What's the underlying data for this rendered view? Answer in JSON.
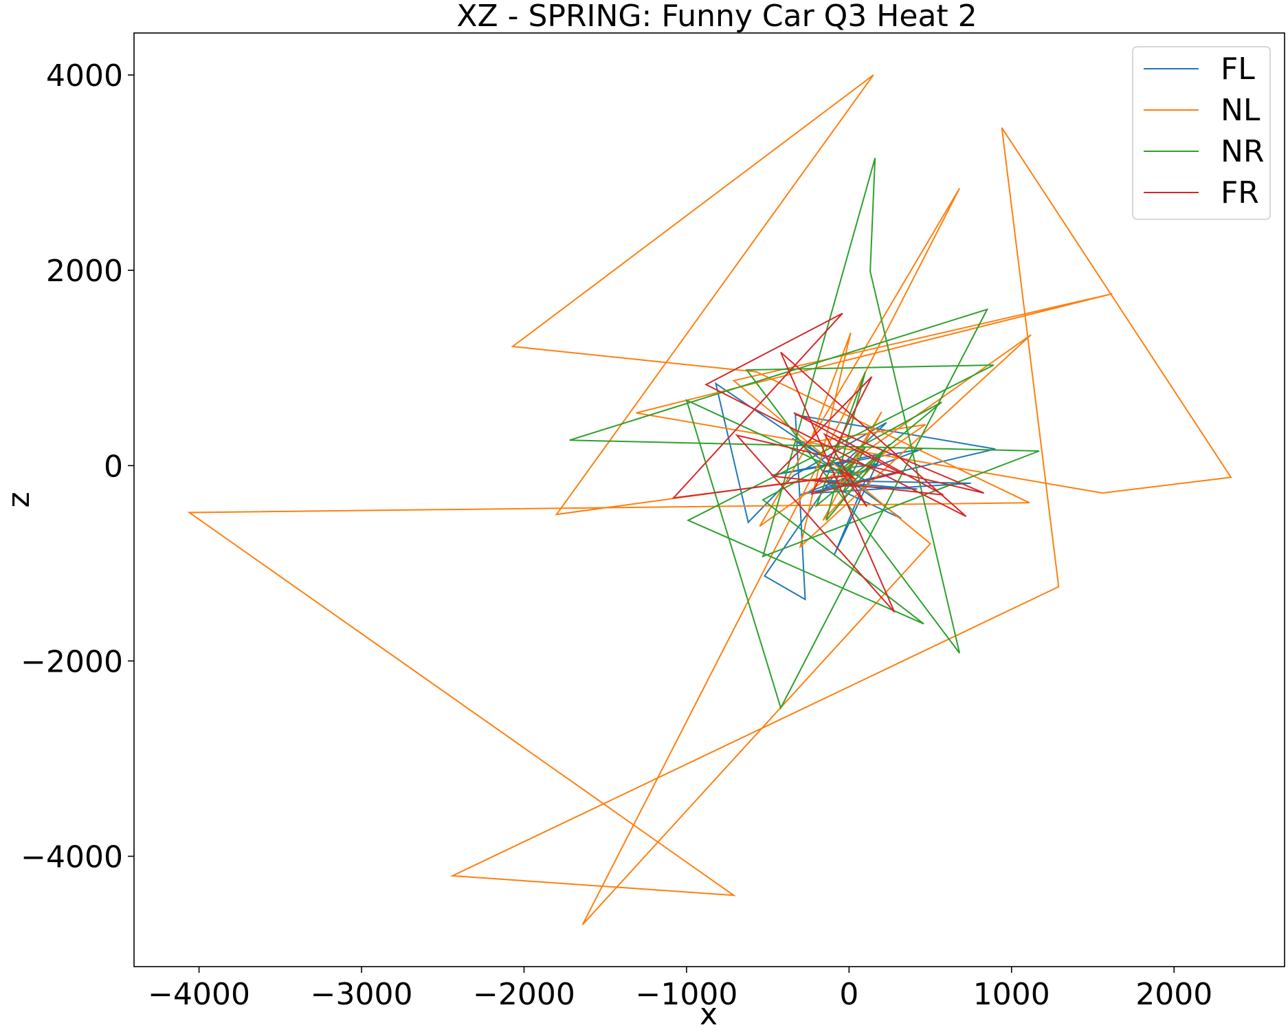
{
  "chart_data": {
    "type": "line",
    "title": "XZ - SPRING: Funny Car Q3 Heat 2",
    "xlabel": "x",
    "ylabel": "z",
    "xlim": [
      -4400,
      2680
    ],
    "ylim": [
      -5130,
      4430
    ],
    "xticks": [
      -4000,
      -3000,
      -2000,
      -1000,
      0,
      1000,
      2000
    ],
    "yticks": [
      -4000,
      -2000,
      0,
      2000,
      4000
    ],
    "xtick_labels": [
      "−4000",
      "−3000",
      "−2000",
      "−1000",
      "0",
      "1000",
      "2000"
    ],
    "ytick_labels": [
      "−4000",
      "−2000",
      "0",
      "2000",
      "4000"
    ],
    "grid": false,
    "legend_position": "top-right",
    "series": [
      {
        "name": "FL",
        "color": "#1f77b4",
        "points": [
          [
            0,
            -80
          ],
          [
            -820,
            840
          ],
          [
            -620,
            -580
          ],
          [
            -340,
            -100
          ],
          [
            230,
            440
          ],
          [
            -60,
            -20
          ],
          [
            -520,
            -1130
          ],
          [
            -270,
            -1370
          ],
          [
            -330,
            520
          ],
          [
            900,
            170
          ],
          [
            -300,
            -300
          ],
          [
            450,
            170
          ],
          [
            -480,
            -100
          ],
          [
            200,
            120
          ],
          [
            -90,
            -910
          ],
          [
            100,
            -150
          ],
          [
            -350,
            280
          ],
          [
            320,
            -540
          ],
          [
            -120,
            -200
          ],
          [
            420,
            -240
          ],
          [
            -230,
            -150
          ],
          [
            750,
            -180
          ],
          [
            -210,
            -280
          ],
          [
            180,
            20
          ],
          [
            -160,
            -60
          ],
          [
            60,
            -90
          ],
          [
            0,
            -40
          ],
          [
            -40,
            -110
          ],
          [
            30,
            -60
          ],
          [
            0,
            -80
          ]
        ]
      },
      {
        "name": "NL",
        "color": "#ff7f0e",
        "points": [
          [
            0,
            -90
          ],
          [
            -1800,
            -500
          ],
          [
            150,
            4000
          ],
          [
            -2070,
            1220
          ],
          [
            -570,
            960
          ],
          [
            1110,
            -380
          ],
          [
            -4060,
            -480
          ],
          [
            -710,
            -4400
          ],
          [
            -2440,
            -4200
          ],
          [
            1290,
            -1240
          ],
          [
            940,
            3460
          ],
          [
            2350,
            -120
          ],
          [
            1560,
            -280
          ],
          [
            -1310,
            540
          ],
          [
            1620,
            1760
          ],
          [
            -710,
            870
          ],
          [
            500,
            -800
          ],
          [
            -1640,
            -4700
          ],
          [
            680,
            2840
          ],
          [
            -550,
            -620
          ],
          [
            1120,
            1340
          ],
          [
            -300,
            -830
          ],
          [
            10,
            1360
          ],
          [
            -240,
            240
          ],
          [
            470,
            420
          ],
          [
            -70,
            -200
          ],
          [
            200,
            550
          ],
          [
            -160,
            -560
          ],
          [
            120,
            -50
          ],
          [
            -30,
            -120
          ],
          [
            0,
            -90
          ]
        ]
      },
      {
        "name": "NR",
        "color": "#2ca02c",
        "points": [
          [
            0,
            -100
          ],
          [
            -1000,
            670
          ],
          [
            -420,
            -2480
          ],
          [
            850,
            1600
          ],
          [
            -1720,
            260
          ],
          [
            1170,
            150
          ],
          [
            -530,
            -930
          ],
          [
            160,
            3150
          ],
          [
            130,
            1990
          ],
          [
            680,
            -1920
          ],
          [
            -630,
            980
          ],
          [
            890,
            1030
          ],
          [
            -990,
            -560
          ],
          [
            460,
            -1620
          ],
          [
            -530,
            -350
          ],
          [
            570,
            650
          ],
          [
            -200,
            -410
          ],
          [
            100,
            960
          ],
          [
            -140,
            -560
          ],
          [
            250,
            220
          ],
          [
            -40,
            -280
          ],
          [
            100,
            190
          ],
          [
            -70,
            -80
          ],
          [
            40,
            40
          ],
          [
            -20,
            -60
          ],
          [
            10,
            -20
          ],
          [
            0,
            -100
          ]
        ]
      },
      {
        "name": "FR",
        "color": "#d62728",
        "points": [
          [
            0,
            -100
          ],
          [
            -1080,
            -330
          ],
          [
            -40,
            1560
          ],
          [
            -880,
            830
          ],
          [
            720,
            -520
          ],
          [
            -420,
            1160
          ],
          [
            280,
            -1500
          ],
          [
            -690,
            310
          ],
          [
            830,
            -280
          ],
          [
            -340,
            540
          ],
          [
            580,
            -300
          ],
          [
            -460,
            -110
          ],
          [
            140,
            910
          ],
          [
            -230,
            -290
          ],
          [
            310,
            -70
          ],
          [
            -150,
            320
          ],
          [
            110,
            -420
          ],
          [
            -60,
            -40
          ],
          [
            40,
            -140
          ],
          [
            -20,
            -60
          ],
          [
            0,
            -100
          ]
        ]
      }
    ]
  }
}
